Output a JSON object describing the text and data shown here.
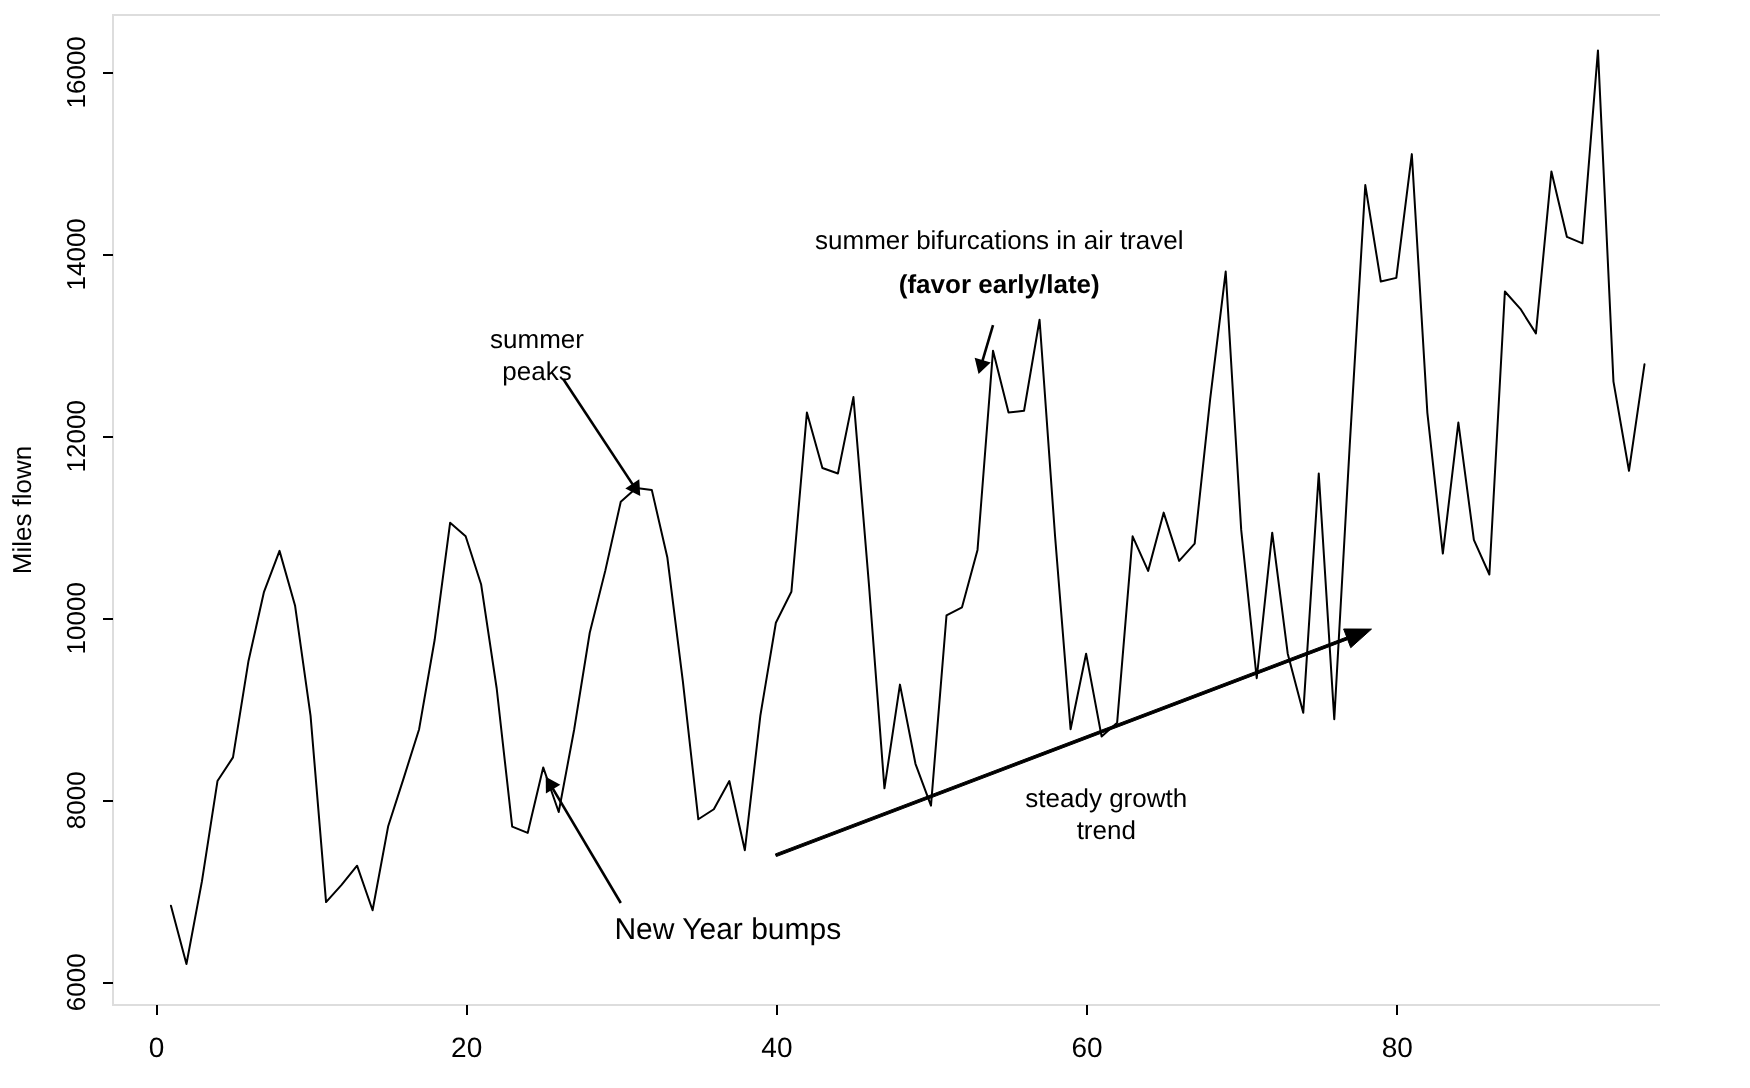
{
  "chart_data": {
    "type": "line",
    "ylabel": "Miles flown",
    "x": [
      1,
      2,
      3,
      4,
      5,
      6,
      7,
      8,
      9,
      10,
      11,
      12,
      13,
      14,
      15,
      16,
      17,
      18,
      19,
      20,
      21,
      22,
      23,
      24,
      25,
      26,
      27,
      28,
      29,
      30,
      31,
      32,
      33,
      34,
      35,
      36,
      37,
      38,
      39,
      40,
      41,
      42,
      43,
      44,
      45,
      46,
      47,
      48,
      49,
      50,
      51,
      52,
      53,
      54,
      55,
      56,
      57,
      58,
      59,
      60,
      61,
      62,
      63,
      64,
      65,
      66,
      67,
      68,
      69,
      70,
      71,
      72,
      73,
      74,
      75,
      76,
      77,
      78,
      79,
      80,
      81,
      82,
      83,
      84,
      85,
      86,
      87,
      88,
      89,
      90,
      91,
      92,
      93,
      94,
      95,
      96
    ],
    "series": [
      {
        "color": "#000000",
        "values": [
          6830,
          6190,
          7100,
          8200,
          8460,
          9520,
          10280,
          10730,
          10130,
          8920,
          6870,
          7060,
          7270,
          6780,
          7700,
          8230,
          8770,
          9750,
          11040,
          10890,
          10360,
          9220,
          7700,
          7630,
          8350,
          7860,
          8770,
          9830,
          10510,
          11270,
          11420,
          11400,
          10660,
          9300,
          7780,
          7890,
          8200,
          7440,
          8920,
          9940,
          10280,
          12250,
          11640,
          11580,
          12420,
          10360,
          8120,
          9260,
          8390,
          7930,
          10020,
          10110,
          10740,
          12930,
          12250,
          12270,
          13270,
          10890,
          8770,
          9600,
          8690,
          8840,
          10890,
          10510,
          11150,
          10620,
          10810,
          12400,
          13800,
          10960,
          9330,
          10930,
          9600,
          8950,
          11580,
          8880,
          11900,
          14750,
          13690,
          13730,
          15090,
          12250,
          10700,
          12140,
          10850,
          10470,
          13580,
          13390,
          13120,
          14900,
          14180,
          14110,
          16230,
          12590,
          11610,
          12780
        ]
      }
    ],
    "xlim": [
      -2.8,
      97
    ],
    "ylim": [
      5750,
      16630
    ],
    "xticks": [
      0,
      20,
      40,
      60,
      80
    ],
    "yticks": [
      6000,
      8000,
      10000,
      12000,
      14000,
      16000
    ],
    "grid": false,
    "marker": "none",
    "line_style": "solid",
    "annotations": [
      {
        "text": "summer\npeaks",
        "x": 31,
        "y": 11400
      },
      "summer bifurcations in air travel",
      {
        "text": "(favor early/late)",
        "x": 53.2,
        "y": 12750
      },
      {
        "text": "New Year bumps",
        "x": 25.4,
        "y": 8180
      },
      "steady growth\ntrend"
    ]
  }
}
